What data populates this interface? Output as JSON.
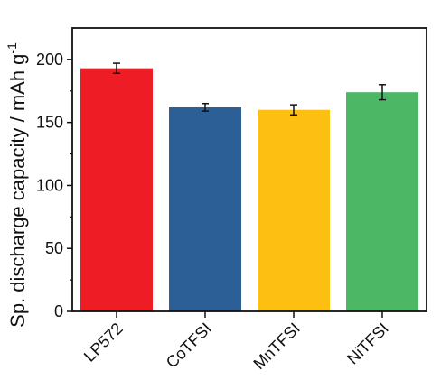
{
  "chart_data": {
    "type": "bar",
    "title": "",
    "xlabel": "",
    "ylabel": "Sp. discharge capacity / mAh g",
    "ylabel_superscript": "-1",
    "categories": [
      "LP572",
      "CoTFSI",
      "MnTFSI",
      "NiTFSI"
    ],
    "values": [
      193,
      162,
      160,
      174
    ],
    "errors": [
      4,
      3,
      4,
      6
    ],
    "colors": [
      "#ee1c25",
      "#2d5f97",
      "#fdc012",
      "#4cb866"
    ],
    "ylim": [
      0,
      225
    ],
    "yticks": [
      0,
      50,
      100,
      150,
      200
    ],
    "grid": false,
    "legend": "none"
  }
}
